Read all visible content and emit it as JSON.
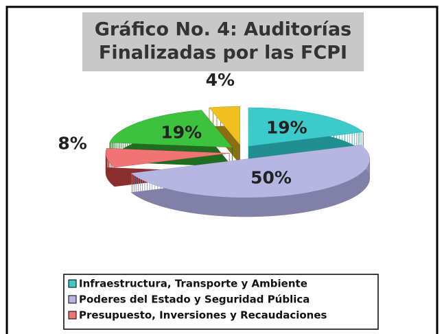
{
  "chart_data": {
    "type": "pie",
    "title": [
      "Gráfico No. 4: Auditorías",
      "Finalizadas por las FCPI"
    ],
    "categories": [
      "Infraestructura, Transporte y Ambiente",
      "Poderes del Estado y Seguridad Pública",
      "Presupuesto, Inversiones y Recaudaciones",
      null,
      null
    ],
    "values": [
      19,
      50,
      8,
      19,
      4
    ],
    "value_labels": [
      "19%",
      "50%",
      "8%",
      "19%",
      "4%"
    ],
    "colors": [
      "#3ccaca",
      "#b6b6e2",
      "#f07474",
      "#3cc23c",
      "#f0c020"
    ],
    "side_colors": [
      "#1f8f90",
      "#8080a8",
      "#8a2e2e",
      "#1f6e1f",
      "#8a6e10"
    ]
  }
}
